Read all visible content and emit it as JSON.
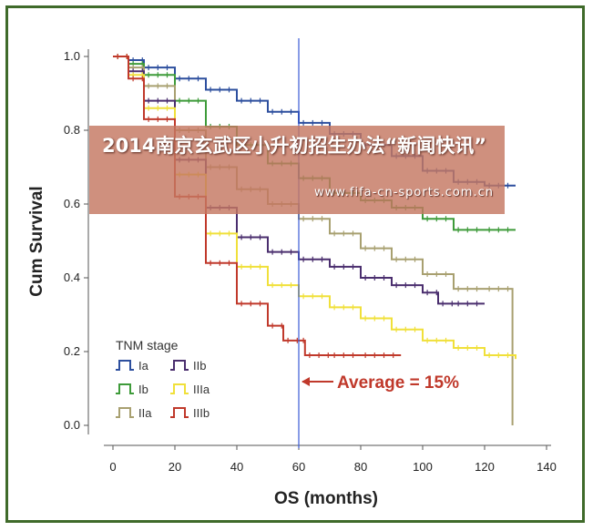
{
  "banner": {
    "title": "2014南京玄武区小升初招生办法“新闻快讯”",
    "url": "www.fifa-cn-sports.com.cn"
  },
  "chart_data": {
    "type": "line",
    "xlabel": "OS (months)",
    "ylabel": "Cum Survival",
    "xlim": [
      0,
      140
    ],
    "ylim": [
      0,
      1.0
    ],
    "xticks": [
      "0",
      "20",
      "40",
      "60",
      "80",
      "100",
      "120",
      "140"
    ],
    "yticks": [
      "0.0",
      "0.2",
      "0.4",
      "0.6",
      "0.8",
      "1.0"
    ],
    "legend": {
      "title": "TNM stage",
      "position": "bottom-left"
    },
    "reference_line": {
      "x": 60,
      "color": "#3a5ad6"
    },
    "annotation": {
      "text": "Average = 15%",
      "color": "#c0392b",
      "arrow_to_x": 60,
      "y": 0.11
    },
    "series": [
      {
        "name": "Ia",
        "color": "#2d4f9e",
        "step": [
          [
            0,
            1.0
          ],
          [
            5,
            0.99
          ],
          [
            10,
            0.97
          ],
          [
            20,
            0.94
          ],
          [
            30,
            0.91
          ],
          [
            40,
            0.88
          ],
          [
            50,
            0.85
          ],
          [
            60,
            0.82
          ],
          [
            70,
            0.79
          ],
          [
            80,
            0.76
          ],
          [
            90,
            0.73
          ],
          [
            100,
            0.69
          ],
          [
            110,
            0.66
          ],
          [
            120,
            0.65
          ],
          [
            130,
            0.65
          ]
        ]
      },
      {
        "name": "Ib",
        "color": "#3e9b3a",
        "step": [
          [
            0,
            1.0
          ],
          [
            5,
            0.98
          ],
          [
            10,
            0.95
          ],
          [
            20,
            0.88
          ],
          [
            30,
            0.81
          ],
          [
            40,
            0.76
          ],
          [
            50,
            0.71
          ],
          [
            60,
            0.67
          ],
          [
            70,
            0.63
          ],
          [
            80,
            0.61
          ],
          [
            90,
            0.59
          ],
          [
            100,
            0.56
          ],
          [
            110,
            0.53
          ],
          [
            120,
            0.53
          ],
          [
            130,
            0.53
          ]
        ]
      },
      {
        "name": "IIa",
        "color": "#a8a070",
        "step": [
          [
            0,
            1.0
          ],
          [
            5,
            0.97
          ],
          [
            10,
            0.92
          ],
          [
            20,
            0.8
          ],
          [
            30,
            0.7
          ],
          [
            40,
            0.64
          ],
          [
            50,
            0.6
          ],
          [
            60,
            0.56
          ],
          [
            70,
            0.52
          ],
          [
            80,
            0.48
          ],
          [
            90,
            0.45
          ],
          [
            100,
            0.41
          ],
          [
            110,
            0.37
          ],
          [
            120,
            0.37
          ],
          [
            128,
            0.37
          ],
          [
            129,
            0.0
          ]
        ]
      },
      {
        "name": "IIb",
        "color": "#4a2e6e",
        "step": [
          [
            0,
            1.0
          ],
          [
            5,
            0.96
          ],
          [
            10,
            0.88
          ],
          [
            20,
            0.72
          ],
          [
            30,
            0.59
          ],
          [
            40,
            0.51
          ],
          [
            50,
            0.47
          ],
          [
            60,
            0.45
          ],
          [
            70,
            0.43
          ],
          [
            80,
            0.4
          ],
          [
            90,
            0.38
          ],
          [
            100,
            0.36
          ],
          [
            105,
            0.33
          ],
          [
            110,
            0.33
          ],
          [
            120,
            0.33
          ]
        ]
      },
      {
        "name": "IIIa",
        "color": "#f0e03a",
        "step": [
          [
            0,
            1.0
          ],
          [
            5,
            0.95
          ],
          [
            10,
            0.86
          ],
          [
            20,
            0.68
          ],
          [
            30,
            0.52
          ],
          [
            40,
            0.43
          ],
          [
            50,
            0.38
          ],
          [
            60,
            0.35
          ],
          [
            70,
            0.32
          ],
          [
            80,
            0.29
          ],
          [
            90,
            0.26
          ],
          [
            100,
            0.23
          ],
          [
            110,
            0.21
          ],
          [
            120,
            0.19
          ],
          [
            130,
            0.18
          ]
        ]
      },
      {
        "name": "IIIb",
        "color": "#c0392b",
        "step": [
          [
            0,
            1.0
          ],
          [
            5,
            0.94
          ],
          [
            10,
            0.83
          ],
          [
            20,
            0.62
          ],
          [
            30,
            0.44
          ],
          [
            40,
            0.33
          ],
          [
            50,
            0.27
          ],
          [
            55,
            0.23
          ],
          [
            60,
            0.23
          ],
          [
            62,
            0.19
          ],
          [
            70,
            0.19
          ],
          [
            80,
            0.19
          ],
          [
            93,
            0.19
          ]
        ]
      }
    ]
  }
}
